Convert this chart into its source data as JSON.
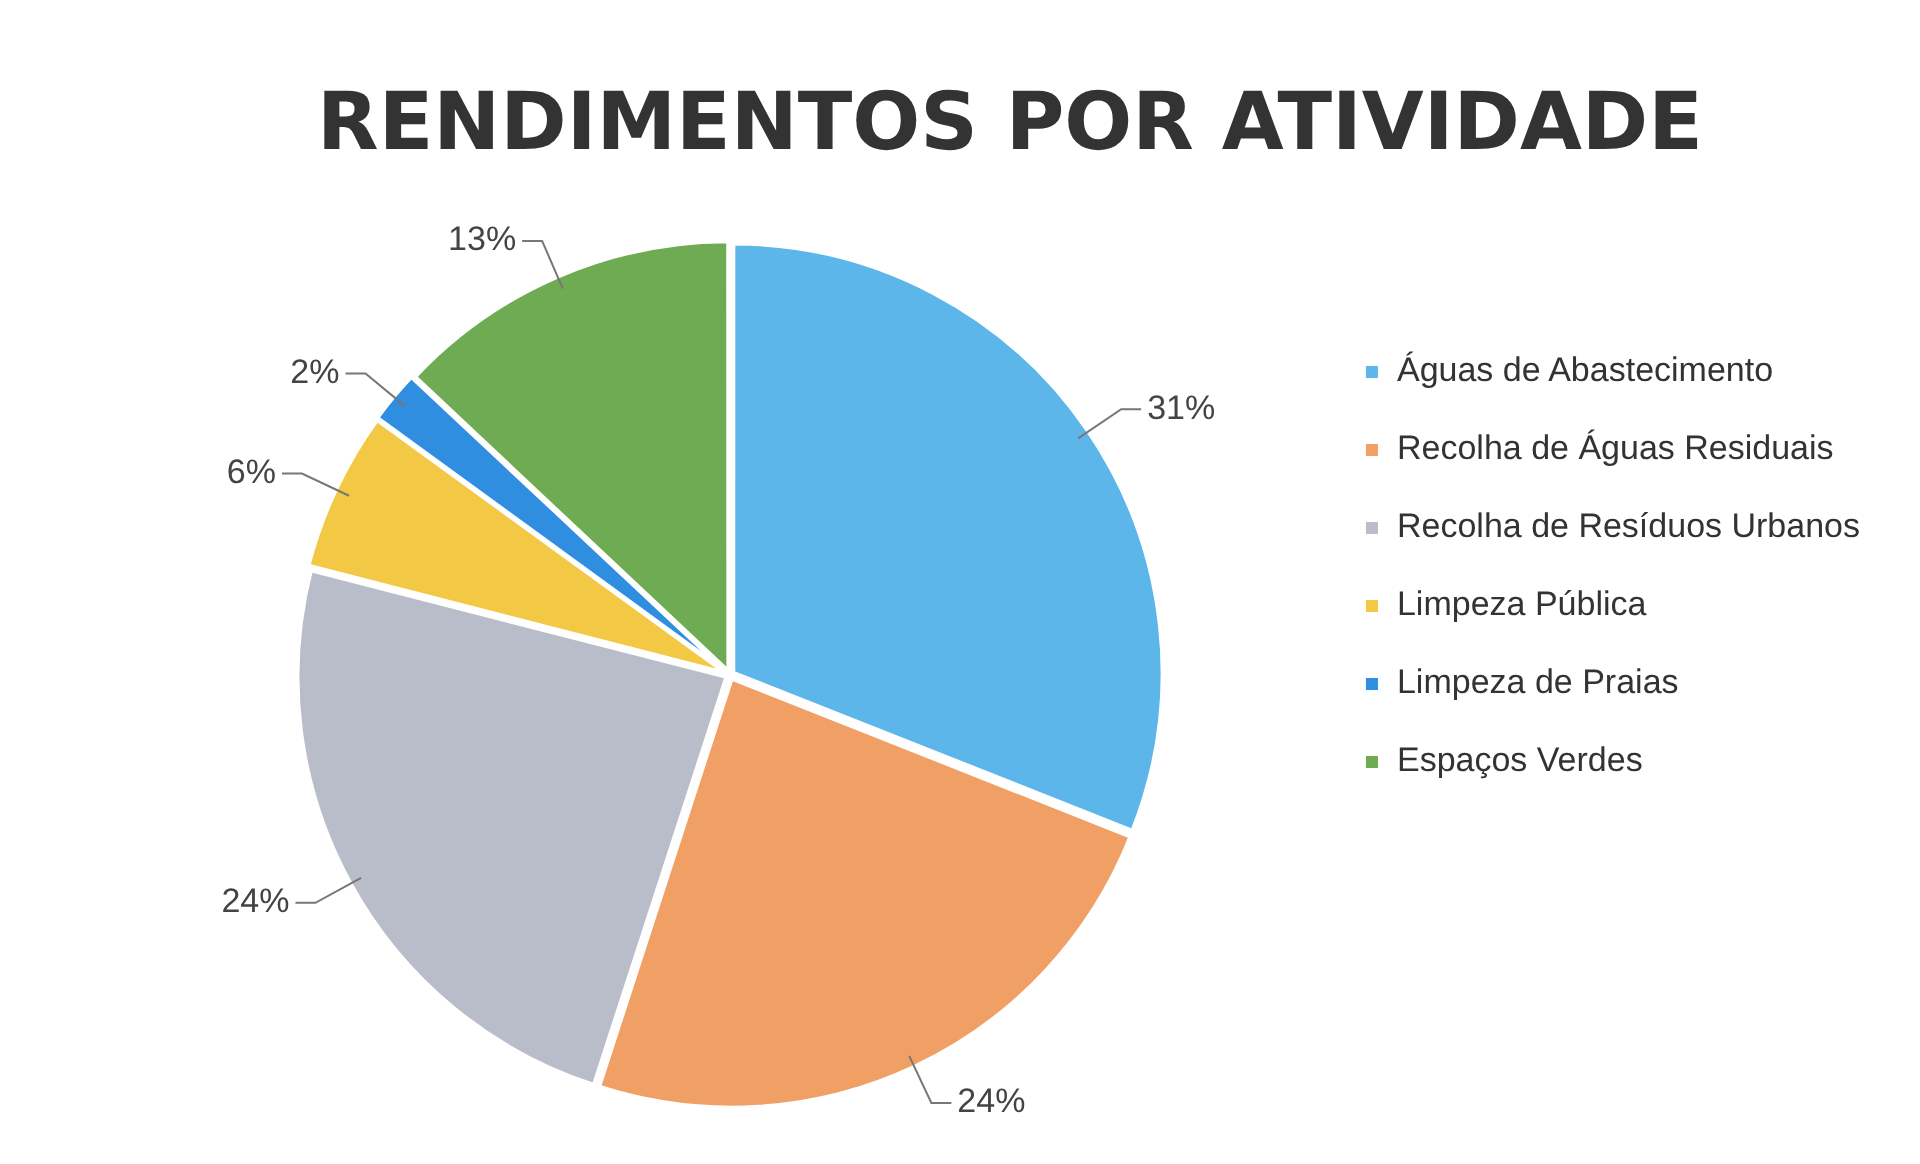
{
  "chart_data": {
    "type": "pie",
    "title": "RENDIMENTOS POR ATIVIDADE",
    "categories": [
      "Águas de Abastecimento",
      "Recolha de Águas Residuais",
      "Recolha de Resíduos Urbanos",
      "Limpeza Pública",
      "Limpeza de Praias",
      "Espaços Verdes"
    ],
    "values": [
      31,
      24,
      24,
      6,
      2,
      13
    ],
    "value_labels": [
      "31%",
      "24%",
      "24%",
      "6%",
      "2%",
      "13%"
    ],
    "colors": [
      "#5db6ea",
      "#f0a064",
      "#b9bdc9",
      "#f3c845",
      "#2f8ee0",
      "#6fab52"
    ],
    "legend": "right"
  }
}
